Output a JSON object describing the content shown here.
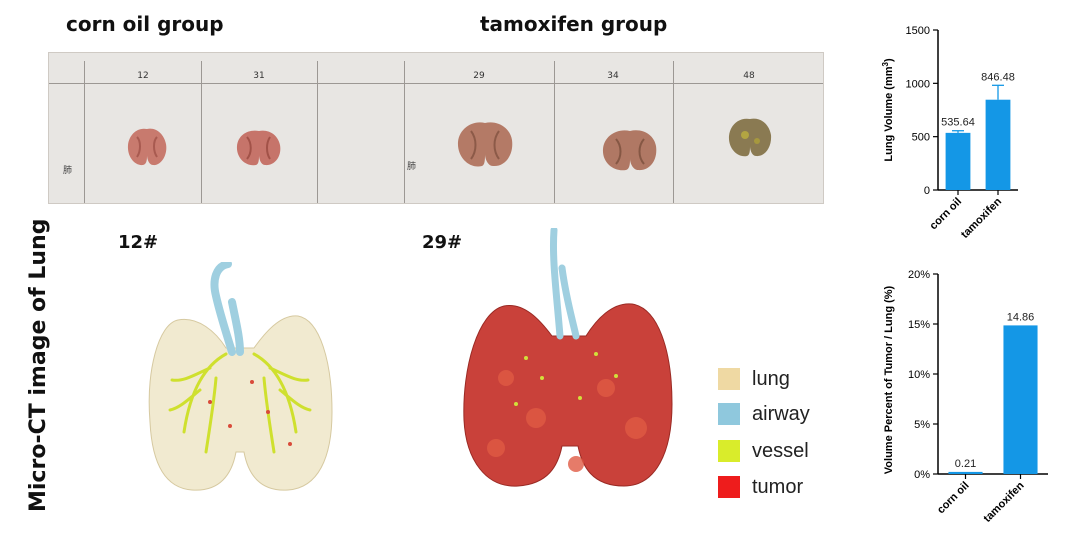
{
  "header": {
    "left_group": "corn oil group",
    "right_group": "tamoxifen group"
  },
  "photo_panel": {
    "columns": [
      "12",
      "31",
      "29",
      "34",
      "48"
    ],
    "row_label": "肺"
  },
  "ct_images": {
    "vertical_title": "Micro-CT image of Lung",
    "left_label": "12#",
    "right_label": "29#"
  },
  "legend": {
    "items": [
      {
        "label": "lung",
        "color": "#efd9a3"
      },
      {
        "label": "airway",
        "color": "#8fc8dd"
      },
      {
        "label": "vessel",
        "color": "#d9ec2b"
      },
      {
        "label": "tumor",
        "color": "#ee1c1c"
      }
    ]
  },
  "colors": {
    "bar": "#1497e6",
    "axis": "#000000"
  },
  "chart_data": [
    {
      "type": "bar",
      "categories": [
        "corn oil",
        "tamoxifen"
      ],
      "values": [
        535.64,
        846.48
      ],
      "errors": [
        20,
        135
      ],
      "data_labels": [
        "535.64",
        "846.48"
      ],
      "ylabel_main": "Lung Volume (mm",
      "ylabel_sup": "3",
      "ylabel_end": ")",
      "ylim": [
        0,
        1500
      ],
      "yticks": [
        0,
        500,
        1000,
        1500
      ],
      "ytick_labels": [
        "0",
        "500",
        "1000",
        "1500"
      ],
      "grid": false
    },
    {
      "type": "bar",
      "categories": [
        "corn oil",
        "tamoxifen"
      ],
      "values": [
        0.21,
        14.86
      ],
      "data_labels": [
        "0.21",
        "14.86"
      ],
      "ylabel": "Volume Percent of Tumor / Lung (%)",
      "ylim": [
        0,
        20
      ],
      "yticks": [
        0,
        5,
        10,
        15,
        20
      ],
      "ytick_labels": [
        "0%",
        "5%",
        "10%",
        "15%",
        "20%"
      ],
      "grid": false
    }
  ]
}
